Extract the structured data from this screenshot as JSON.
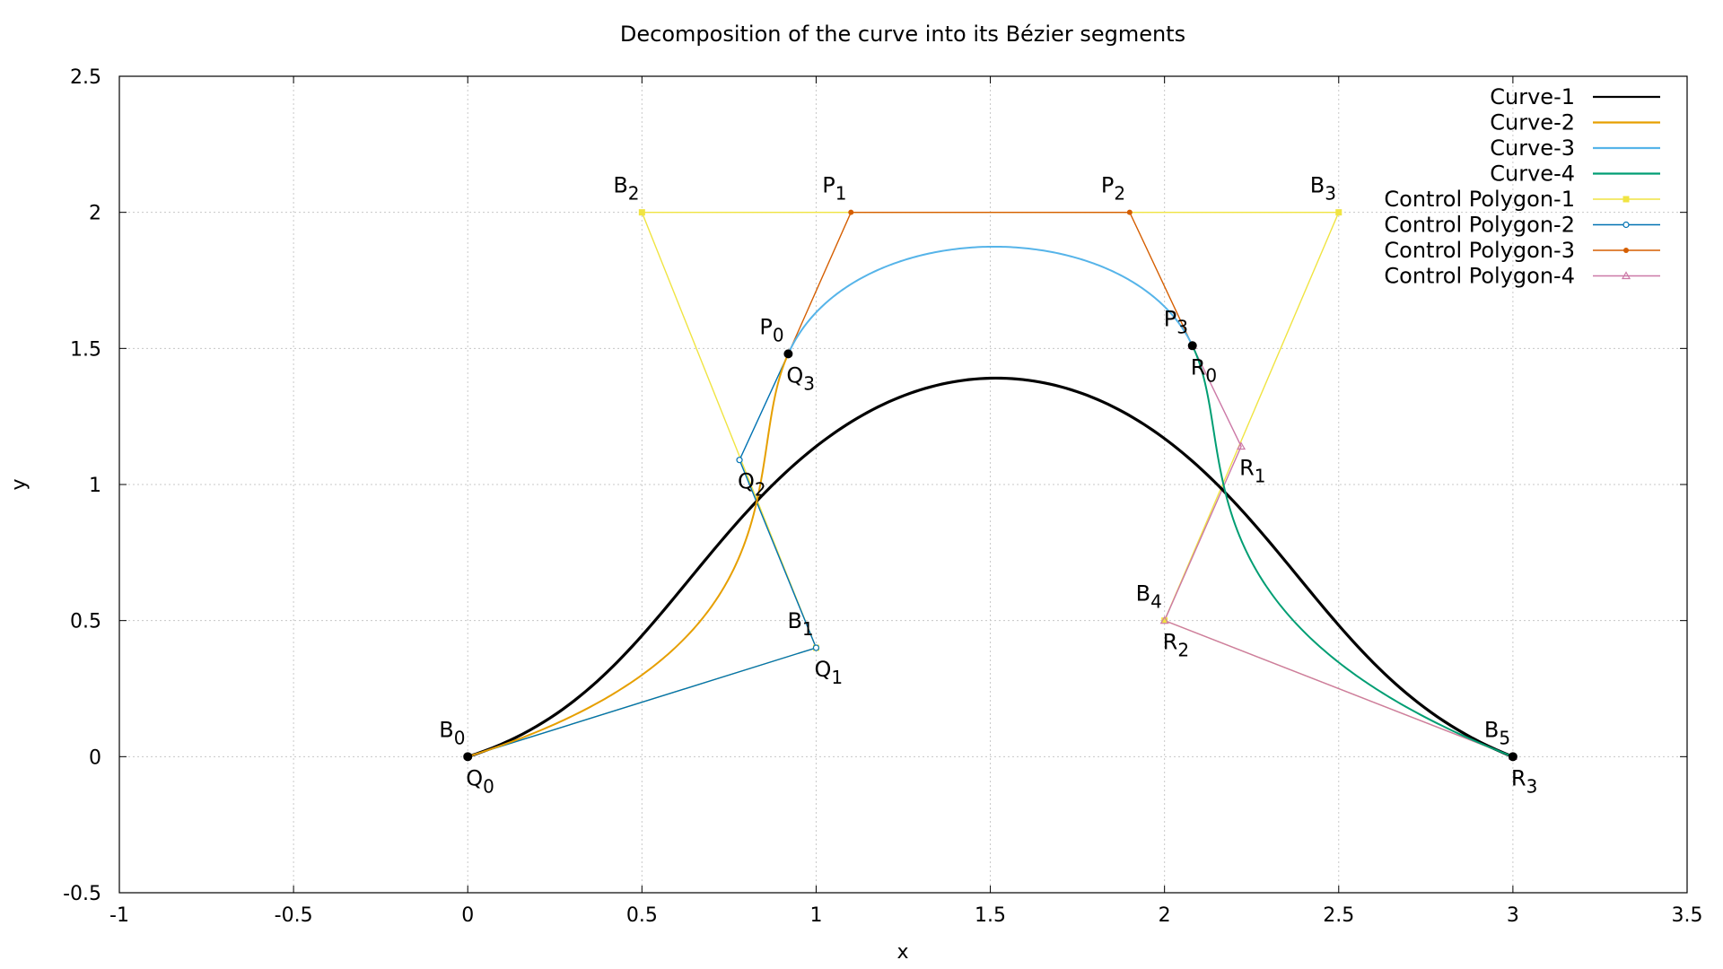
{
  "chart_data": {
    "type": "line",
    "title": "Decomposition of the curve into its Bézier segments",
    "xlabel": "x",
    "ylabel": "y",
    "xlim": [
      -1,
      3.5
    ],
    "ylim": [
      -0.5,
      2.5
    ],
    "xticks": [
      "-1",
      "-0.5",
      "0",
      "0.5",
      "1",
      "1.5",
      "2",
      "2.5",
      "3",
      "3.5"
    ],
    "xtick_values": [
      -1,
      -0.5,
      0,
      0.5,
      1,
      1.5,
      2,
      2.5,
      3,
      3.5
    ],
    "yticks": [
      "-0.5",
      "0",
      "0.5",
      "1",
      "1.5",
      "2",
      "2.5"
    ],
    "ytick_values": [
      -0.5,
      0,
      0.5,
      1,
      1.5,
      2,
      2.5
    ],
    "grid": true,
    "legend_position": "top-right",
    "series": [
      {
        "name": "Curve-1",
        "kind": "curve",
        "color": "#000000",
        "control": [
          [
            0,
            0
          ],
          [
            1,
            0.4
          ],
          [
            0.5,
            2
          ],
          [
            2.5,
            2
          ],
          [
            2,
            0.5
          ],
          [
            3,
            0
          ]
        ]
      },
      {
        "name": "Curve-2",
        "kind": "curve",
        "color": "#e69f00",
        "control": [
          [
            0,
            0
          ],
          [
            1,
            0.4
          ],
          [
            0.78,
            1.09
          ],
          [
            0.92,
            1.48
          ]
        ]
      },
      {
        "name": "Curve-3",
        "kind": "curve",
        "color": "#56b4e9",
        "control": [
          [
            0.92,
            1.48
          ],
          [
            1.1,
            2
          ],
          [
            1.9,
            2
          ],
          [
            2.08,
            1.51
          ]
        ]
      },
      {
        "name": "Curve-4",
        "kind": "curve",
        "color": "#009e73",
        "control": [
          [
            2.08,
            1.51
          ],
          [
            2.22,
            1.14
          ],
          [
            2,
            0.5
          ],
          [
            3,
            0
          ]
        ]
      },
      {
        "name": "Control Polygon-1",
        "kind": "polygon",
        "color": "#f0e442",
        "marker": "square",
        "points": [
          [
            0,
            0
          ],
          [
            1,
            0.4
          ],
          [
            0.5,
            2
          ],
          [
            2.5,
            2
          ],
          [
            2,
            0.5
          ],
          [
            3,
            0
          ]
        ]
      },
      {
        "name": "Control Polygon-2",
        "kind": "polygon",
        "color": "#0072b2",
        "marker": "circle",
        "points": [
          [
            0,
            0
          ],
          [
            1,
            0.4
          ],
          [
            0.78,
            1.09
          ],
          [
            0.92,
            1.48
          ]
        ]
      },
      {
        "name": "Control Polygon-3",
        "kind": "polygon",
        "color": "#d55e00",
        "marker": "dot",
        "points": [
          [
            0.92,
            1.48
          ],
          [
            1.1,
            2
          ],
          [
            1.9,
            2
          ],
          [
            2.08,
            1.51
          ]
        ]
      },
      {
        "name": "Control Polygon-4",
        "kind": "polygon",
        "color": "#cc79a7",
        "marker": "triangle",
        "points": [
          [
            2.08,
            1.51
          ],
          [
            2.22,
            1.14
          ],
          [
            2,
            0.5
          ],
          [
            3,
            0
          ]
        ]
      }
    ],
    "junction_points": [
      [
        0,
        0
      ],
      [
        0.92,
        1.48
      ],
      [
        2.08,
        1.51
      ],
      [
        3,
        0
      ]
    ],
    "point_labels": [
      {
        "base": "B",
        "sub": "0",
        "x": 0,
        "y": 0,
        "pos": "above-left"
      },
      {
        "base": "Q",
        "sub": "0",
        "x": 0,
        "y": 0,
        "pos": "below"
      },
      {
        "base": "B",
        "sub": "1",
        "x": 1,
        "y": 0.4,
        "pos": "above-left"
      },
      {
        "base": "Q",
        "sub": "1",
        "x": 1,
        "y": 0.4,
        "pos": "below"
      },
      {
        "base": "B",
        "sub": "2",
        "x": 0.5,
        "y": 2,
        "pos": "above-left"
      },
      {
        "base": "Q",
        "sub": "2",
        "x": 0.78,
        "y": 1.09,
        "pos": "below"
      },
      {
        "base": "P",
        "sub": "0",
        "x": 0.92,
        "y": 1.48,
        "pos": "above-left"
      },
      {
        "base": "Q",
        "sub": "3",
        "x": 0.92,
        "y": 1.48,
        "pos": "below"
      },
      {
        "base": "P",
        "sub": "1",
        "x": 1.1,
        "y": 2,
        "pos": "above-left"
      },
      {
        "base": "P",
        "sub": "2",
        "x": 1.9,
        "y": 2,
        "pos": "above-left"
      },
      {
        "base": "B",
        "sub": "3",
        "x": 2.5,
        "y": 2,
        "pos": "above-left"
      },
      {
        "base": "P",
        "sub": "3",
        "x": 2.08,
        "y": 1.51,
        "pos": "above-left"
      },
      {
        "base": "R",
        "sub": "0",
        "x": 2.08,
        "y": 1.51,
        "pos": "below"
      },
      {
        "base": "R",
        "sub": "1",
        "x": 2.22,
        "y": 1.14,
        "pos": "below"
      },
      {
        "base": "B",
        "sub": "4",
        "x": 2,
        "y": 0.5,
        "pos": "above-left"
      },
      {
        "base": "R",
        "sub": "2",
        "x": 2,
        "y": 0.5,
        "pos": "below"
      },
      {
        "base": "B",
        "sub": "5",
        "x": 3,
        "y": 0,
        "pos": "above-left"
      },
      {
        "base": "R",
        "sub": "3",
        "x": 3,
        "y": 0,
        "pos": "below"
      }
    ]
  }
}
